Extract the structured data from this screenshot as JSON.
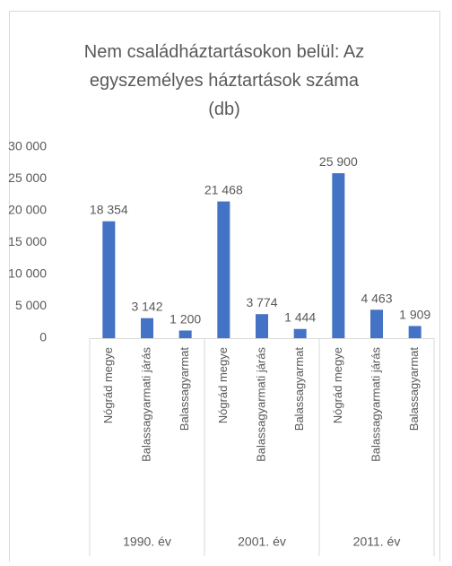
{
  "chart_data": {
    "type": "bar",
    "title": [
      "Nem családháztartásokon belül: Az",
      "egyszemélyes háztartások száma",
      "(db)"
    ],
    "categories": [
      "Nógrád megye",
      "Balassagyarmati járás",
      "Balassagyarmat",
      "Nógrád megye",
      "Balassagyarmati járás",
      "Balassagyarmat",
      "Nógrád megye",
      "Balassagyarmati járás",
      "Balassagyarmat"
    ],
    "groups": [
      "1990. év",
      "2001. év",
      "2011. év"
    ],
    "values": [
      18354,
      3142,
      1200,
      21468,
      3774,
      1444,
      25900,
      4463,
      1909
    ],
    "value_labels": [
      "18 354",
      "3 142",
      "1 200",
      "21 468",
      "3 774",
      "1 444",
      "25 900",
      "4 463",
      "1 909"
    ],
    "color": "#4472c4",
    "ylim": [
      0,
      30000
    ],
    "yticks": [
      0,
      {
        "value": 5000,
        "label": "5 000"
      },
      {
        "value": 10000,
        "label": "10 000"
      },
      {
        "value": 15000,
        "label": "15 000"
      },
      {
        "value": 20000,
        "label": "20 000"
      },
      {
        "value": 25000,
        "label": "25 000"
      },
      {
        "value": 30000,
        "label": "30 000"
      }
    ],
    "grid": false
  }
}
